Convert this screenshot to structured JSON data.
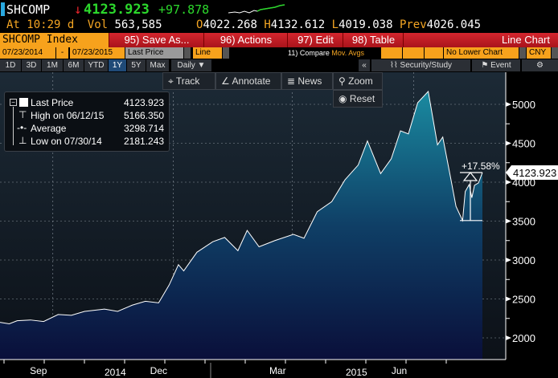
{
  "ticker": {
    "symbol": "SHCOMP",
    "direction": "down-arrow",
    "last": "4123.923",
    "change": "+97.878",
    "at_label": "At",
    "time": "10:29",
    "d": "d",
    "vol_label": "Vol",
    "vol": "563,585",
    "o_label": "O",
    "open": "4022.268",
    "h_label": "H",
    "high": "4132.612",
    "l_label": "L",
    "low": "4019.038",
    "prev_label": "Prev",
    "prev": "4026.045"
  },
  "menu": {
    "security": "SHCOMP Index",
    "save": "95) Save As...",
    "actions": "96) Actions",
    "edit": "97) Edit",
    "table": "98) Table",
    "chart_type": "Line Chart"
  },
  "options": {
    "start": "07/23/2014",
    "dash": "-",
    "end": "07/23/2015",
    "field": "Last Price",
    "style": "Line",
    "compare_prefix": "11) Compare",
    "compare": "Mov. Avgs",
    "lower": "No Lower Chart",
    "currency": "CNY"
  },
  "periods": [
    "1D",
    "3D",
    "1M",
    "6M",
    "YTD",
    "1Y",
    "5Y",
    "Max"
  ],
  "active_period": "1Y",
  "frequency": "Daily ▼",
  "right_tools": {
    "collapse": "«",
    "security_study": "Security/Study",
    "event": "Event"
  },
  "toolbar": {
    "track": "Track",
    "annotate": "Annotate",
    "news": "News",
    "zoom": "Zoom",
    "reset": "Reset"
  },
  "legend": {
    "last_label": "Last Price",
    "last": "4123.923",
    "high_label": "High on 06/12/15",
    "high": "5166.350",
    "avg_label": "Average",
    "avg": "3298.714",
    "low_label": "Low on 07/30/14",
    "low": "2181.243"
  },
  "colors": {
    "accent": "#f7a21c",
    "menu_red": "#d4262e",
    "line": "#ffffff",
    "fill_top": "#1a7f95",
    "fill_bottom": "#0a0f3a",
    "up": "#2cd82c"
  },
  "chart_data": {
    "type": "area",
    "ylim": [
      1850,
      5250
    ],
    "yticks": [
      2000,
      2500,
      3000,
      3500,
      4000,
      4500,
      5000
    ],
    "xticks": [
      {
        "label": "Sep",
        "date": "2014-09-01"
      },
      {
        "label": "Dec",
        "date": "2014-12-01"
      },
      {
        "label": "Mar",
        "date": "2015-03-01"
      },
      {
        "label": "Jun",
        "date": "2015-06-01"
      }
    ],
    "years": [
      "2014",
      "2015"
    ],
    "last_label": "4123.923",
    "annotation": "+17.58%",
    "points": [
      [
        "2014-07-23",
        2200
      ],
      [
        "2014-07-30",
        2181
      ],
      [
        "2014-08-05",
        2220
      ],
      [
        "2014-08-15",
        2230
      ],
      [
        "2014-08-25",
        2210
      ],
      [
        "2014-09-05",
        2300
      ],
      [
        "2014-09-15",
        2290
      ],
      [
        "2014-09-25",
        2340
      ],
      [
        "2014-10-10",
        2370
      ],
      [
        "2014-10-20",
        2340
      ],
      [
        "2014-10-31",
        2420
      ],
      [
        "2014-11-10",
        2470
      ],
      [
        "2014-11-20",
        2450
      ],
      [
        "2014-11-28",
        2680
      ],
      [
        "2014-12-05",
        2940
      ],
      [
        "2014-12-09",
        2860
      ],
      [
        "2014-12-19",
        3100
      ],
      [
        "2014-12-31",
        3235
      ],
      [
        "2015-01-09",
        3290
      ],
      [
        "2015-01-19",
        3120
      ],
      [
        "2015-01-26",
        3380
      ],
      [
        "2015-02-04",
        3170
      ],
      [
        "2015-02-16",
        3250
      ],
      [
        "2015-03-02",
        3330
      ],
      [
        "2015-03-10",
        3280
      ],
      [
        "2015-03-20",
        3620
      ],
      [
        "2015-03-31",
        3750
      ],
      [
        "2015-04-10",
        4030
      ],
      [
        "2015-04-20",
        4220
      ],
      [
        "2015-04-27",
        4530
      ],
      [
        "2015-05-07",
        4110
      ],
      [
        "2015-05-15",
        4300
      ],
      [
        "2015-05-22",
        4660
      ],
      [
        "2015-05-28",
        4620
      ],
      [
        "2015-06-04",
        5020
      ],
      [
        "2015-06-12",
        5166
      ],
      [
        "2015-06-19",
        4480
      ],
      [
        "2015-06-23",
        4580
      ],
      [
        "2015-06-29",
        4050
      ],
      [
        "2015-07-03",
        3690
      ],
      [
        "2015-07-08",
        3507
      ],
      [
        "2015-07-10",
        3880
      ],
      [
        "2015-07-13",
        3970
      ],
      [
        "2015-07-15",
        3800
      ],
      [
        "2015-07-17",
        3960
      ],
      [
        "2015-07-20",
        3990
      ],
      [
        "2015-07-23",
        4124
      ]
    ]
  }
}
